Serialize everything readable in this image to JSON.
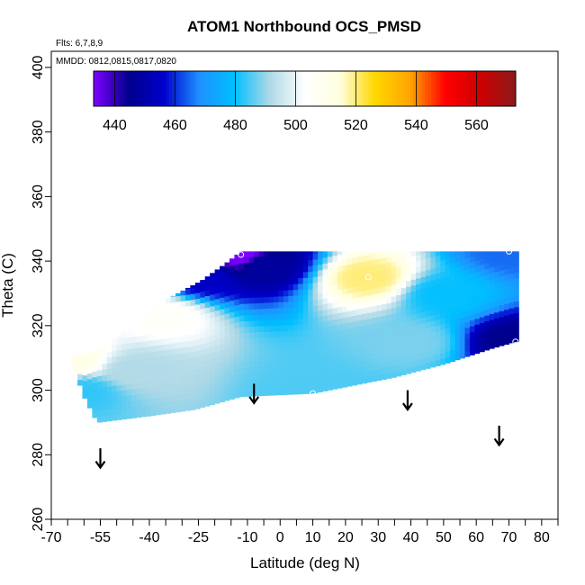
{
  "chart_data": {
    "type": "heatmap",
    "title": "ATOM1 Northbound OCS_PMSD",
    "flights_note": "Flts: 6,7,8,9",
    "dates_note": "MMDD: 0812,0815,0817,0820",
    "xlabel": "Latitude (deg N)",
    "ylabel": "Theta (C)",
    "xlim": [
      -70,
      85
    ],
    "ylim": [
      260,
      405
    ],
    "x_ticks": [
      -70,
      -55,
      -40,
      -25,
      -10,
      0,
      10,
      20,
      30,
      40,
      50,
      60,
      70,
      80
    ],
    "x_minor_ticks": [
      -65,
      -60,
      -50,
      -45,
      -35,
      -30,
      -20,
      -15,
      -5,
      5,
      15,
      25,
      35,
      45,
      55,
      65,
      75,
      85
    ],
    "y_ticks": [
      260,
      280,
      300,
      320,
      340,
      360,
      380,
      400
    ],
    "colorbar": {
      "range": [
        433,
        573
      ],
      "ticks": [
        440,
        460,
        480,
        500,
        520,
        540,
        560
      ],
      "colors": [
        "#7f00ff",
        "#00008b",
        "#0000cd",
        "#1e90ff",
        "#00bfff",
        "#add8e6",
        "#ffffff",
        "#ffffe0",
        "#ffd700",
        "#ffa500",
        "#ff0000",
        "#cd0000",
        "#8b1a1a"
      ]
    },
    "field_bounds": {
      "lat_range": [
        -65,
        72
      ],
      "top_theta": 343,
      "bottom_edge": [
        {
          "lat": -65,
          "theta": 312
        },
        {
          "lat": -60,
          "theta": 298
        },
        {
          "lat": -56,
          "theta": 290
        },
        {
          "lat": -40,
          "theta": 292
        },
        {
          "lat": -26,
          "theta": 294
        },
        {
          "lat": -12,
          "theta": 298
        },
        {
          "lat": 10,
          "theta": 299
        },
        {
          "lat": 20,
          "theta": 301
        },
        {
          "lat": 35,
          "theta": 304
        },
        {
          "lat": 50,
          "theta": 308
        },
        {
          "lat": 65,
          "theta": 313
        },
        {
          "lat": 72,
          "theta": 315
        }
      ],
      "top_edge": [
        {
          "lat": -65,
          "theta": 310
        },
        {
          "lat": -55,
          "theta": 313
        },
        {
          "lat": -45,
          "theta": 320
        },
        {
          "lat": -35,
          "theta": 328
        },
        {
          "lat": -24,
          "theta": 334
        },
        {
          "lat": -17,
          "theta": 339
        },
        {
          "lat": -12,
          "theta": 343
        },
        {
          "lat": 72,
          "theta": 343
        }
      ]
    },
    "control_points": [
      {
        "lat": -12,
        "theta": 342,
        "value": 433
      },
      {
        "lat": -24,
        "theta": 335,
        "value": 455
      },
      {
        "lat": -5,
        "theta": 339,
        "value": 448
      },
      {
        "lat": 10,
        "theta": 299,
        "value": 485
      },
      {
        "lat": 27,
        "theta": 335,
        "value": 520
      },
      {
        "lat": 70,
        "theta": 343,
        "value": 465
      },
      {
        "lat": 72,
        "theta": 315,
        "value": 445
      },
      {
        "lat": -60,
        "theta": 300,
        "value": 483
      },
      {
        "lat": -64,
        "theta": 309,
        "value": 512
      },
      {
        "lat": -45,
        "theta": 306,
        "value": 492
      },
      {
        "lat": -35,
        "theta": 323,
        "value": 505
      },
      {
        "lat": 40,
        "theta": 315,
        "value": 488
      },
      {
        "lat": 50,
        "theta": 330,
        "value": 480
      }
    ],
    "markers": [
      {
        "lat": -12,
        "theta": 342
      },
      {
        "lat": 10,
        "theta": 299
      },
      {
        "lat": 27,
        "theta": 335
      },
      {
        "lat": 70,
        "theta": 343
      },
      {
        "lat": 72,
        "theta": 315
      }
    ],
    "arrows": [
      {
        "lat": -55,
        "theta": 279
      },
      {
        "lat": -8,
        "theta": 299
      },
      {
        "lat": 39,
        "theta": 297
      },
      {
        "lat": 67,
        "theta": 286
      }
    ]
  }
}
